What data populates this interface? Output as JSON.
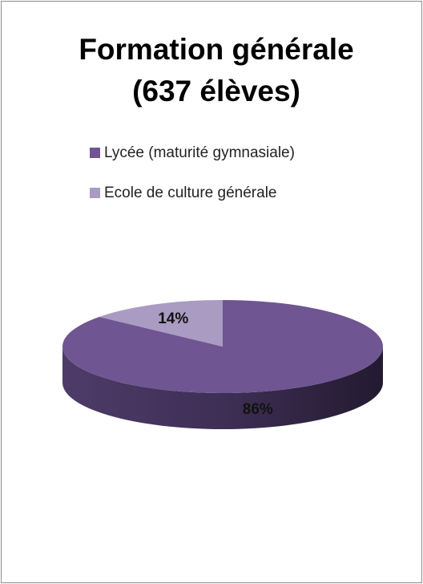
{
  "chart_data": {
    "type": "pie3d",
    "title": "Formation générale (637 élèves)",
    "categories": [
      "Lycée (maturité gymnasiale)",
      "Ecole de culture générale"
    ],
    "values": [
      86,
      14
    ],
    "value_labels": [
      "86%",
      "14%"
    ],
    "colors": [
      "#6f5591",
      "#a99bc1"
    ],
    "legend": "top"
  }
}
